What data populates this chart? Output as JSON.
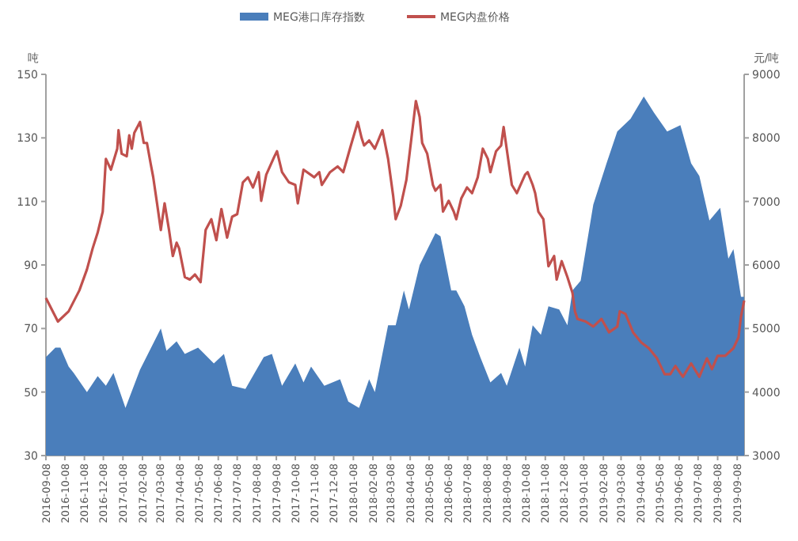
{
  "chart_data": {
    "type": "area",
    "ylabel": "吨",
    "y2label": "元/吨",
    "legend": "top",
    "xlim": [
      "2016-09-08",
      "2019-09-19"
    ],
    "xticks": [
      "2016-09-08",
      "2016-10-08",
      "2016-11-08",
      "2016-12-08",
      "2017-01-08",
      "2017-02-08",
      "2017-03-08",
      "2017-04-08",
      "2017-05-08",
      "2017-06-08",
      "2017-07-08",
      "2017-08-08",
      "2017-09-08",
      "2017-10-08",
      "2017-11-08",
      "2017-12-08",
      "2018-01-08",
      "2018-02-08",
      "2018-03-08",
      "2018-04-08",
      "2018-05-08",
      "2018-06-08",
      "2018-07-08",
      "2018-08-08",
      "2018-09-08",
      "2018-10-08",
      "2018-11-08",
      "2018-12-08",
      "2019-01-08",
      "2019-02-08",
      "2019-03-08",
      "2019-04-08",
      "2019-05-08",
      "2019-06-08",
      "2019-07-08",
      "2019-08-08",
      "2019-09-08"
    ],
    "ylim": [
      30,
      150
    ],
    "yticks": [
      30,
      50,
      70,
      90,
      110,
      130,
      150
    ],
    "y2lim": [
      3000,
      9000
    ],
    "y2ticks": [
      3000,
      4000,
      5000,
      6000,
      7000,
      8000,
      9000
    ],
    "series": [
      {
        "name": "MEG港口库存指数",
        "axis": "y",
        "color": "#4a7ebb",
        "x": [
          "2016-09-08",
          "2016-09-23",
          "2016-10-01",
          "2016-10-14",
          "2016-10-22",
          "2016-11-12",
          "2016-11-29",
          "2016-12-12",
          "2016-12-24",
          "2017-01-12",
          "2017-02-04",
          "2017-03-09",
          "2017-03-18",
          "2017-04-03",
          "2017-04-16",
          "2017-05-07",
          "2017-06-01",
          "2017-06-17",
          "2017-06-30",
          "2017-07-21",
          "2017-08-19",
          "2017-09-01",
          "2017-09-17",
          "2017-10-08",
          "2017-10-21",
          "2017-11-02",
          "2017-11-23",
          "2017-12-18",
          "2017-12-31",
          "2018-01-17",
          "2018-02-02",
          "2018-02-11",
          "2018-03-04",
          "2018-03-16",
          "2018-03-29",
          "2018-04-06",
          "2018-04-23",
          "2018-05-18",
          "2018-05-26",
          "2018-06-12",
          "2018-06-20",
          "2018-07-03",
          "2018-07-15",
          "2018-07-28",
          "2018-08-13",
          "2018-08-30",
          "2018-09-08",
          "2018-09-28",
          "2018-10-07",
          "2018-10-19",
          "2018-11-01",
          "2018-11-13",
          "2018-11-30",
          "2018-12-13",
          "2018-12-21",
          "2019-01-03",
          "2019-01-23",
          "2019-02-13",
          "2019-03-02",
          "2019-03-23",
          "2019-04-13",
          "2019-04-29",
          "2019-05-20",
          "2019-06-10",
          "2019-06-27",
          "2019-07-10",
          "2019-07-26",
          "2019-08-12",
          "2019-08-25",
          "2019-09-02",
          "2019-09-14",
          "2019-09-19"
        ],
        "values": [
          61,
          64,
          64,
          58,
          56,
          50,
          55,
          52,
          56,
          45,
          57,
          70,
          63,
          66,
          62,
          64,
          59,
          62,
          52,
          51,
          61,
          62,
          52,
          59,
          53,
          58,
          52,
          54,
          47,
          45,
          54,
          50,
          71,
          71,
          82,
          76,
          90,
          100,
          99,
          82,
          82,
          77,
          68,
          61,
          53,
          56,
          52,
          64,
          58,
          71,
          68,
          77,
          76,
          71,
          82,
          85,
          109,
          122,
          132,
          136,
          143,
          138,
          132,
          134,
          122,
          118,
          104,
          108,
          92,
          95,
          80,
          80
        ]
      },
      {
        "name": "MEG内盘价格",
        "type": "line",
        "axis": "y2",
        "color": "#c0504d",
        "x": [
          "2016-09-08",
          "2016-09-27",
          "2016-10-14",
          "2016-10-31",
          "2016-11-12",
          "2016-11-21",
          "2016-11-29",
          "2016-12-07",
          "2016-12-12",
          "2016-12-20",
          "2016-12-30",
          "2017-01-01",
          "2017-01-06",
          "2017-01-14",
          "2017-01-18",
          "2017-01-22",
          "2017-01-26",
          "2017-02-04",
          "2017-02-10",
          "2017-02-15",
          "2017-02-21",
          "2017-02-25",
          "2017-03-03",
          "2017-03-09",
          "2017-03-15",
          "2017-03-22",
          "2017-03-28",
          "2017-04-03",
          "2017-04-07",
          "2017-04-16",
          "2017-04-24",
          "2017-05-02",
          "2017-05-11",
          "2017-05-19",
          "2017-05-28",
          "2017-06-05",
          "2017-06-13",
          "2017-06-22",
          "2017-06-30",
          "2017-07-08",
          "2017-07-17",
          "2017-07-25",
          "2017-08-02",
          "2017-08-11",
          "2017-08-15",
          "2017-08-23",
          "2017-09-05",
          "2017-09-09",
          "2017-09-17",
          "2017-09-28",
          "2017-10-08",
          "2017-10-12",
          "2017-10-21",
          "2017-11-07",
          "2017-11-15",
          "2017-11-19",
          "2017-12-02",
          "2017-12-14",
          "2017-12-23",
          "2018-01-04",
          "2018-01-15",
          "2018-01-21",
          "2018-01-25",
          "2018-02-02",
          "2018-02-11",
          "2018-02-23",
          "2018-03-04",
          "2018-03-12",
          "2018-03-16",
          "2018-03-24",
          "2018-04-02",
          "2018-04-10",
          "2018-04-17",
          "2018-04-23",
          "2018-04-27",
          "2018-05-05",
          "2018-05-14",
          "2018-05-18",
          "2018-05-26",
          "2018-05-30",
          "2018-06-08",
          "2018-06-16",
          "2018-06-20",
          "2018-06-28",
          "2018-07-07",
          "2018-07-15",
          "2018-07-24",
          "2018-08-01",
          "2018-08-09",
          "2018-08-13",
          "2018-08-22",
          "2018-08-30",
          "2018-09-03",
          "2018-09-09",
          "2018-09-16",
          "2018-09-24",
          "2018-10-07",
          "2018-10-11",
          "2018-10-19",
          "2018-10-23",
          "2018-10-28",
          "2018-11-05",
          "2018-11-13",
          "2018-11-22",
          "2018-11-26",
          "2018-12-04",
          "2018-12-13",
          "2018-12-21",
          "2018-12-25",
          "2018-12-29",
          "2019-01-11",
          "2019-01-23",
          "2019-02-05",
          "2019-02-17",
          "2019-03-02",
          "2019-03-06",
          "2019-03-15",
          "2019-03-27",
          "2019-04-09",
          "2019-04-21",
          "2019-05-04",
          "2019-05-16",
          "2019-05-25",
          "2019-06-02",
          "2019-06-14",
          "2019-06-27",
          "2019-07-10",
          "2019-07-22",
          "2019-07-30",
          "2019-08-08",
          "2019-08-20",
          "2019-09-02",
          "2019-09-10",
          "2019-09-14",
          "2019-09-19"
        ],
        "values": [
          5480,
          5110,
          5270,
          5600,
          5930,
          6260,
          6510,
          6840,
          7670,
          7500,
          7830,
          8120,
          7750,
          7710,
          8040,
          7830,
          8080,
          8250,
          7920,
          7920,
          7590,
          7380,
          6970,
          6550,
          6970,
          6550,
          6140,
          6350,
          6260,
          5810,
          5770,
          5850,
          5730,
          6550,
          6720,
          6390,
          6880,
          6430,
          6760,
          6800,
          7300,
          7380,
          7220,
          7460,
          7010,
          7420,
          7710,
          7790,
          7460,
          7300,
          7260,
          6970,
          7500,
          7380,
          7460,
          7260,
          7460,
          7550,
          7460,
          7880,
          8250,
          8000,
          7880,
          7960,
          7830,
          8120,
          7670,
          7090,
          6720,
          6930,
          7340,
          8000,
          8580,
          8330,
          7920,
          7750,
          7260,
          7170,
          7260,
          6840,
          7010,
          6840,
          6720,
          7050,
          7220,
          7130,
          7380,
          7830,
          7670,
          7460,
          7790,
          7880,
          8170,
          7750,
          7260,
          7130,
          7420,
          7460,
          7260,
          7130,
          6840,
          6720,
          5980,
          6140,
          5770,
          6060,
          5810,
          5560,
          5270,
          5150,
          5110,
          5030,
          5150,
          4940,
          5030,
          5270,
          5230,
          4940,
          4780,
          4690,
          4530,
          4280,
          4280,
          4410,
          4240,
          4450,
          4240,
          4530,
          4360,
          4570,
          4570,
          4690,
          4860,
          5190,
          5440
        ]
      }
    ]
  }
}
